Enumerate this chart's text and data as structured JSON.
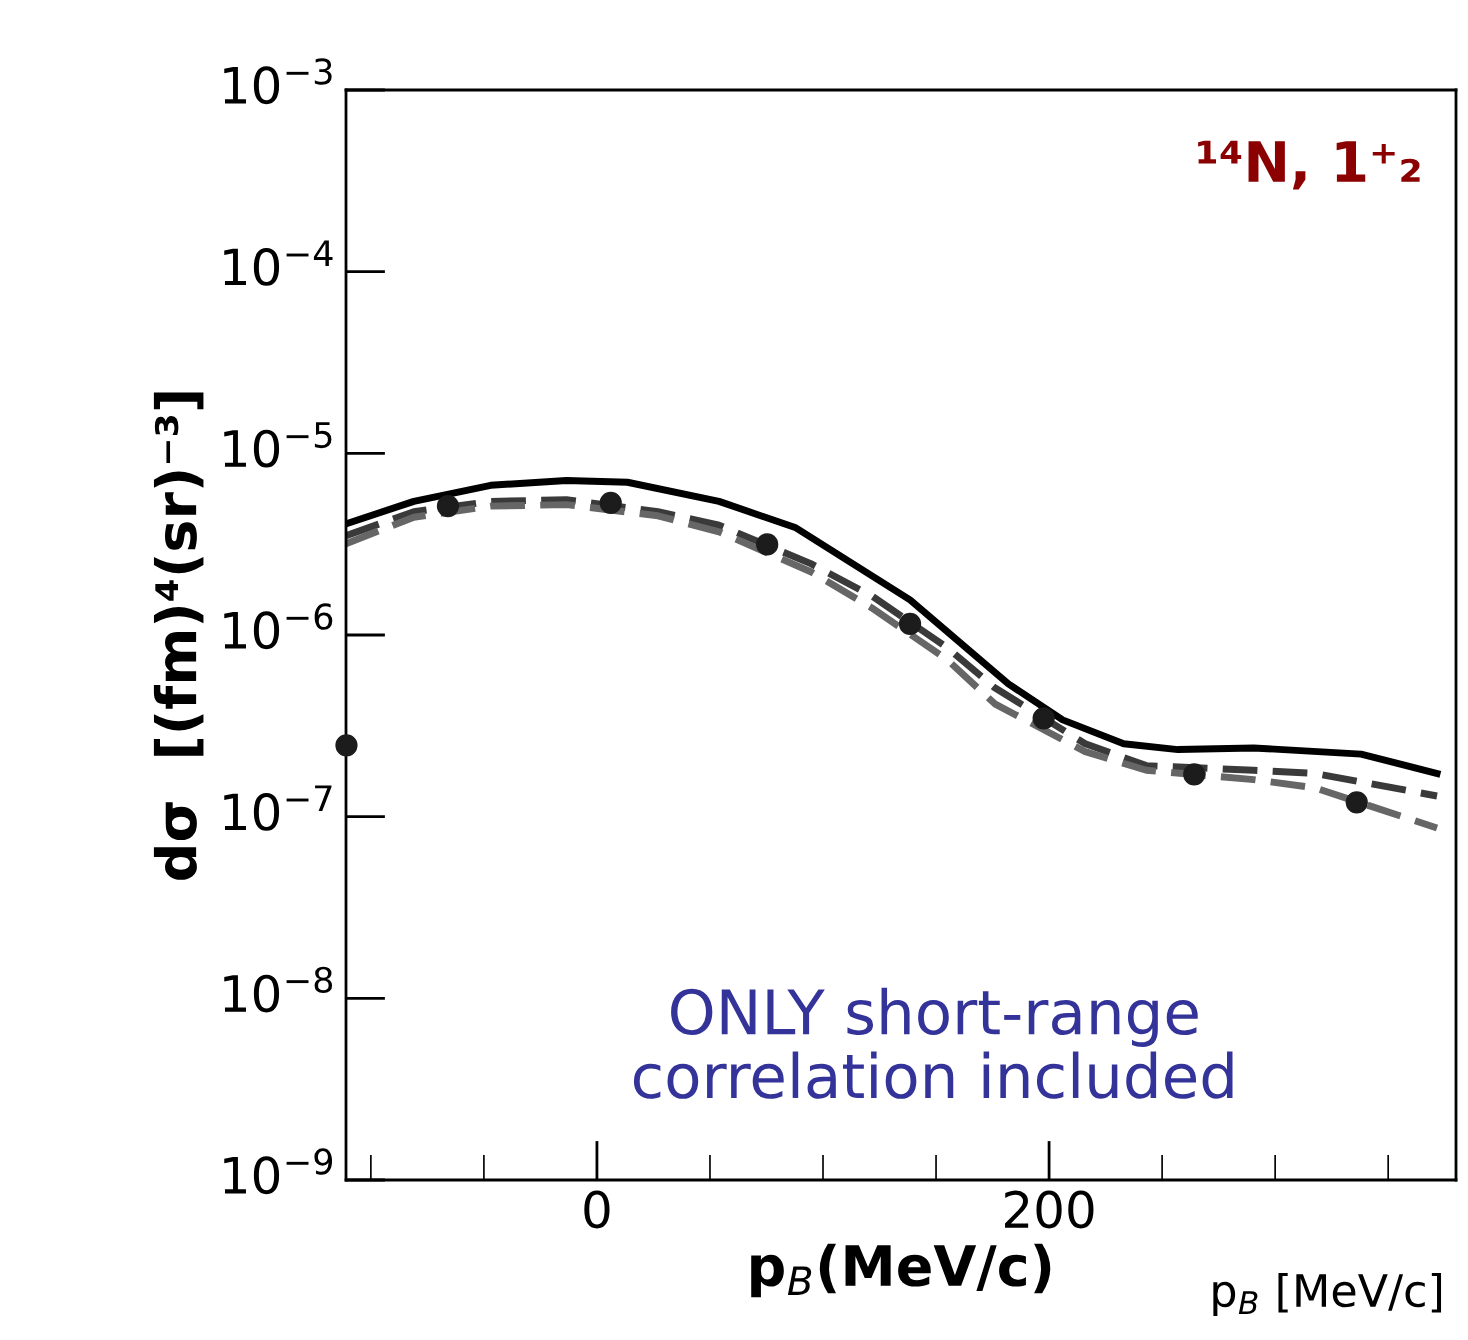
{
  "chart_data": {
    "type": "line",
    "xlabel": "p$_{B}$(MeV/c)",
    "ylabel": "dσ  [(fm)⁴(sr)⁻³]",
    "annotations": [
      "¹⁴N, 1⁺₂",
      "ONLY short-range correlation included",
      "p$_{B}$ [MeV/c]"
    ],
    "log": "y",
    "grid": false,
    "legend": false,
    "xlim": [
      -111,
      380
    ],
    "xticks": [
      0,
      200
    ],
    "ylim": [
      1e-09,
      0.001
    ],
    "yticks": [
      {
        "value": 1e-09,
        "label": "10$^{−9}$"
      },
      {
        "value": 1e-08,
        "label": "10$^{−8}$"
      },
      {
        "value": 1e-07,
        "label": "10$^{−7}$"
      },
      {
        "value": 1e-06,
        "label": "10$^{−6}$"
      },
      {
        "value": 1e-05,
        "label": "10$^{−5}$"
      },
      {
        "value": 0.0001,
        "label": "10$^{−4}$"
      },
      {
        "value": 0.001,
        "label": "10$^{−3}$"
      }
    ],
    "series": [
      {
        "color": "#000000",
        "line_style": "solid",
        "x": [
          -111,
          -81,
          -47,
          -13.5,
          13.5,
          54,
          88,
          138.5,
          182,
          206,
          233,
          257,
          290.5,
          338,
          371.6
        ],
        "values": [
          4.09e-06,
          5.44e-06,
          6.67e-06,
          7.08e-06,
          6.93e-06,
          5.44e-06,
          3.89e-06,
          1.56e-06,
          5.38e-07,
          3.41e-07,
          2.52e-07,
          2.34e-07,
          2.39e-07,
          2.21e-07,
          1.73e-07
        ]
      },
      {
        "color": "#3a3a3a",
        "line_style": "dashed",
        "x": [
          -111,
          -81,
          -47,
          -13.5,
          27,
          54,
          94.6,
          121.6,
          155,
          176,
          216,
          243,
          290.5,
          317.6,
          371.6
        ],
        "values": [
          3.52e-06,
          4.77e-06,
          5.44e-06,
          5.55e-06,
          4.77e-06,
          4.02e-06,
          2.47e-06,
          1.64e-06,
          8.51e-07,
          5.12e-07,
          2.52e-07,
          1.91e-07,
          1.8e-07,
          1.73e-07,
          1.3e-07
        ]
      },
      {
        "color": "#666666",
        "line_style": "dashed",
        "x": [
          -111,
          -81,
          -47,
          -13.5,
          27,
          54,
          94.6,
          121.6,
          155,
          176,
          216,
          243,
          290.5,
          317.6,
          371.6
        ],
        "values": [
          3.18e-06,
          4.45e-06,
          5.12e-06,
          5.22e-06,
          4.53e-06,
          3.7e-06,
          2.23e-06,
          1.41e-06,
          7.3e-07,
          4.18e-07,
          2.28e-07,
          1.8e-07,
          1.6e-07,
          1.44e-07,
          8.67e-08
        ]
      },
      {
        "type": "scatter",
        "color": "#1c1c1c",
        "marker": "circle",
        "x": [
          -110.8,
          -65.9,
          6.1,
          75.3,
          138.5,
          197.6,
          264.2,
          336.1
        ],
        "values": [
          2.47e-07,
          5.12e-06,
          5.33e-06,
          3.15e-06,
          1.15e-06,
          3.48e-07,
          1.71e-07,
          1.2e-07
        ]
      }
    ]
  }
}
